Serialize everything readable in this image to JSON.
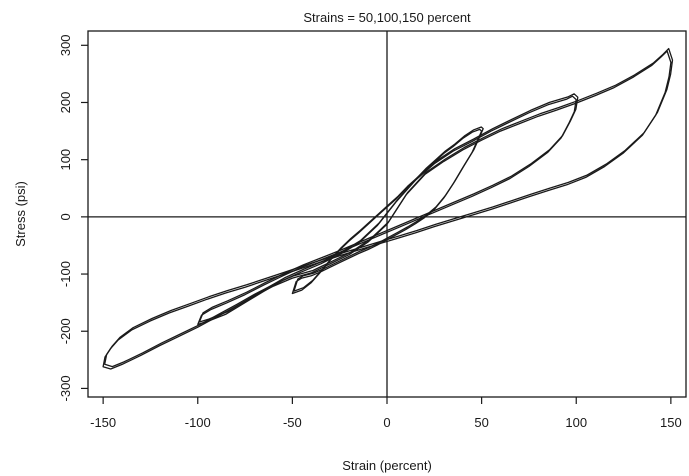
{
  "chart_data": {
    "type": "line",
    "title": "Strains = 50,100,150 percent",
    "xlabel": "Strain (percent)",
    "ylabel": "Stress (psi)",
    "xlim": [
      -158,
      158
    ],
    "ylim": [
      -315,
      325
    ],
    "xticks": [
      -150,
      -100,
      -50,
      0,
      50,
      100,
      150
    ],
    "yticks": [
      -300,
      -200,
      -100,
      0,
      100,
      200,
      300
    ],
    "reference_lines": {
      "x": 0,
      "y": 0
    },
    "grid": false,
    "series": [
      {
        "loop": [
          [
            -50,
            -134
          ],
          [
            -45,
            -128
          ],
          [
            -40,
            -115
          ],
          [
            -35,
            -96
          ],
          [
            -30,
            -76
          ],
          [
            -25,
            -58
          ],
          [
            -20,
            -42
          ],
          [
            -15,
            -28
          ],
          [
            -10,
            -13
          ],
          [
            -5,
            2
          ],
          [
            0,
            17
          ],
          [
            5,
            32
          ],
          [
            10,
            49
          ],
          [
            15,
            64
          ],
          [
            20,
            81
          ],
          [
            25,
            96
          ],
          [
            30,
            111
          ],
          [
            35,
            123
          ],
          [
            40,
            137
          ],
          [
            45,
            148
          ],
          [
            49,
            153
          ],
          [
            50,
            150
          ],
          [
            48,
            135
          ],
          [
            45,
            113
          ],
          [
            40,
            86
          ],
          [
            35,
            58
          ],
          [
            30,
            33
          ],
          [
            25,
            13
          ],
          [
            20,
            -1
          ],
          [
            15,
            -12
          ],
          [
            10,
            -22
          ],
          [
            5,
            -31
          ],
          [
            0,
            -40
          ],
          [
            -5,
            -49
          ],
          [
            -10,
            -57
          ],
          [
            -15,
            -64
          ],
          [
            -20,
            -72
          ],
          [
            -25,
            -80
          ],
          [
            -30,
            -88
          ],
          [
            -35,
            -96
          ],
          [
            -40,
            -103
          ],
          [
            -45,
            -107
          ],
          [
            -48,
            -113
          ],
          [
            -50,
            -134
          ]
        ]
      },
      {
        "loop": [
          [
            -100,
            -188
          ],
          [
            -95,
            -183
          ],
          [
            -85,
            -170
          ],
          [
            -75,
            -150
          ],
          [
            -65,
            -130
          ],
          [
            -55,
            -111
          ],
          [
            -45,
            -96
          ],
          [
            -35,
            -82
          ],
          [
            -25,
            -66
          ],
          [
            -15,
            -46
          ],
          [
            -5,
            -15
          ],
          [
            5,
            27
          ],
          [
            15,
            64
          ],
          [
            25,
            93
          ],
          [
            35,
            115
          ],
          [
            45,
            132
          ],
          [
            55,
            150
          ],
          [
            65,
            166
          ],
          [
            75,
            182
          ],
          [
            85,
            196
          ],
          [
            95,
            206
          ],
          [
            98,
            211
          ],
          [
            100,
            205
          ],
          [
            99,
            184
          ],
          [
            96,
            163
          ],
          [
            92,
            138
          ],
          [
            85,
            113
          ],
          [
            75,
            88
          ],
          [
            65,
            67
          ],
          [
            55,
            51
          ],
          [
            45,
            36
          ],
          [
            35,
            22
          ],
          [
            25,
            8
          ],
          [
            15,
            -6
          ],
          [
            5,
            -20
          ],
          [
            -5,
            -34
          ],
          [
            -15,
            -48
          ],
          [
            -25,
            -62
          ],
          [
            -35,
            -75
          ],
          [
            -45,
            -88
          ],
          [
            -55,
            -103
          ],
          [
            -65,
            -119
          ],
          [
            -75,
            -136
          ],
          [
            -85,
            -151
          ],
          [
            -93,
            -162
          ],
          [
            -98,
            -172
          ],
          [
            -100,
            -188
          ]
        ]
      },
      {
        "loop": [
          [
            -150,
            -262
          ],
          [
            -146,
            -266
          ],
          [
            -140,
            -258
          ],
          [
            -130,
            -242
          ],
          [
            -120,
            -225
          ],
          [
            -110,
            -209
          ],
          [
            -100,
            -193
          ],
          [
            -90,
            -175
          ],
          [
            -80,
            -157
          ],
          [
            -70,
            -138
          ],
          [
            -60,
            -121
          ],
          [
            -50,
            -107
          ],
          [
            -40,
            -98
          ],
          [
            -30,
            -82
          ],
          [
            -20,
            -66
          ],
          [
            -10,
            -44
          ],
          [
            0,
            -13
          ],
          [
            10,
            38
          ],
          [
            20,
            74
          ],
          [
            30,
            97
          ],
          [
            40,
            117
          ],
          [
            50,
            134
          ],
          [
            60,
            150
          ],
          [
            70,
            163
          ],
          [
            80,
            176
          ],
          [
            90,
            187
          ],
          [
            100,
            199
          ],
          [
            110,
            212
          ],
          [
            120,
            226
          ],
          [
            130,
            244
          ],
          [
            140,
            265
          ],
          [
            145,
            280
          ],
          [
            148,
            290
          ],
          [
            150,
            270
          ],
          [
            149,
            245
          ],
          [
            147,
            218
          ],
          [
            142,
            178
          ],
          [
            135,
            143
          ],
          [
            125,
            112
          ],
          [
            115,
            88
          ],
          [
            105,
            69
          ],
          [
            95,
            56
          ],
          [
            85,
            46
          ],
          [
            75,
            35
          ],
          [
            65,
            24
          ],
          [
            55,
            13
          ],
          [
            45,
            3
          ],
          [
            35,
            -7
          ],
          [
            25,
            -17
          ],
          [
            15,
            -28
          ],
          [
            5,
            -38
          ],
          [
            -5,
            -48
          ],
          [
            -15,
            -58
          ],
          [
            -25,
            -68
          ],
          [
            -35,
            -79
          ],
          [
            -45,
            -90
          ],
          [
            -55,
            -101
          ],
          [
            -65,
            -112
          ],
          [
            -75,
            -123
          ],
          [
            -85,
            -133
          ],
          [
            -95,
            -144
          ],
          [
            -105,
            -156
          ],
          [
            -115,
            -168
          ],
          [
            -125,
            -182
          ],
          [
            -135,
            -198
          ],
          [
            -142,
            -215
          ],
          [
            -146,
            -230
          ],
          [
            -149,
            -245
          ],
          [
            -150,
            -262
          ]
        ]
      }
    ]
  }
}
